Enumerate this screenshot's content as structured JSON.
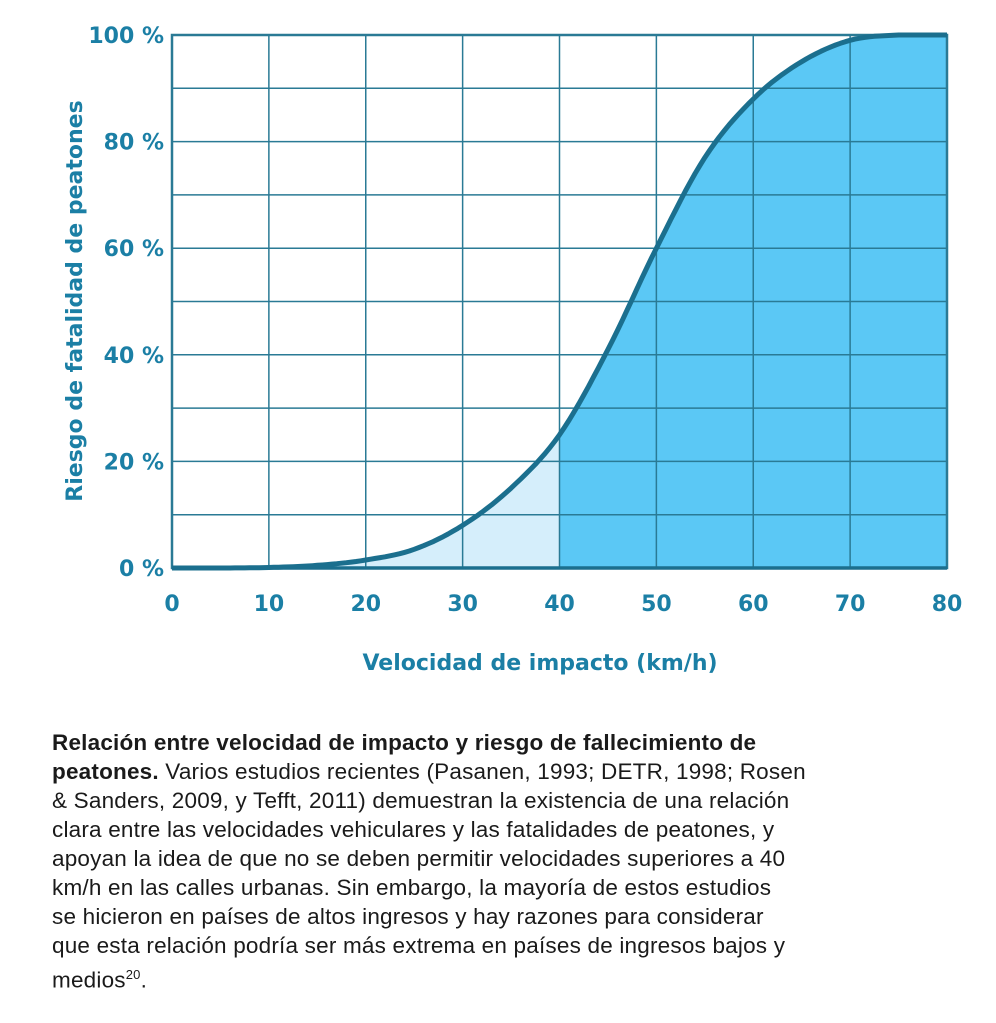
{
  "chart_data": {
    "type": "area",
    "title": "",
    "xlabel": "Velocidad de impacto (km/h)",
    "ylabel": "Riesgo de fatalidad de peatones",
    "x": [
      0,
      5,
      10,
      15,
      20,
      25,
      30,
      35,
      40,
      45,
      50,
      55,
      60,
      65,
      70,
      75,
      80
    ],
    "y": [
      0,
      0,
      0.1,
      0.5,
      1.5,
      3.5,
      8,
      15,
      25,
      41,
      60,
      77,
      88,
      95,
      99,
      100,
      100
    ],
    "xlim": [
      0,
      80
    ],
    "ylim": [
      0,
      100
    ],
    "xticks": [
      "0",
      "10",
      "20",
      "30",
      "40",
      "50",
      "60",
      "70",
      "80"
    ],
    "yticks": [
      "0 %",
      "20 %",
      "40 %",
      "60 %",
      "80 %",
      "100 %"
    ],
    "grid": true,
    "highlight_split_x": 40,
    "colors": {
      "line": "#1b6f8e",
      "grid": "#2a7a95",
      "fill_low": "#d5eefb",
      "fill_high": "#5bc8f5",
      "text": "#1b7fa5"
    }
  },
  "caption": {
    "title_line1": "Relación entre velocidad de impacto y riesgo de fallecimiento de",
    "title_line2": "peatones.",
    "body_lines": [
      " Varios estudios recientes (Pasanen, 1993; DETR, 1998; Rosen",
      "& Sanders, 2009, y Tefft, 2011) demuestran la existencia de una relación",
      "clara entre las velocidades vehiculares y las fatalidades de peatones, y",
      "apoyan la idea de que no se deben permitir  velocidades superiores a 40",
      "km/h en las calles urbanas. Sin embargo, la mayoría de estos estudios",
      "se hicieron en países de altos ingresos y hay razones para considerar",
      "que esta relación podría ser más extrema en países de ingresos bajos y",
      "medios"
    ],
    "footnote": "20",
    "end": "."
  }
}
